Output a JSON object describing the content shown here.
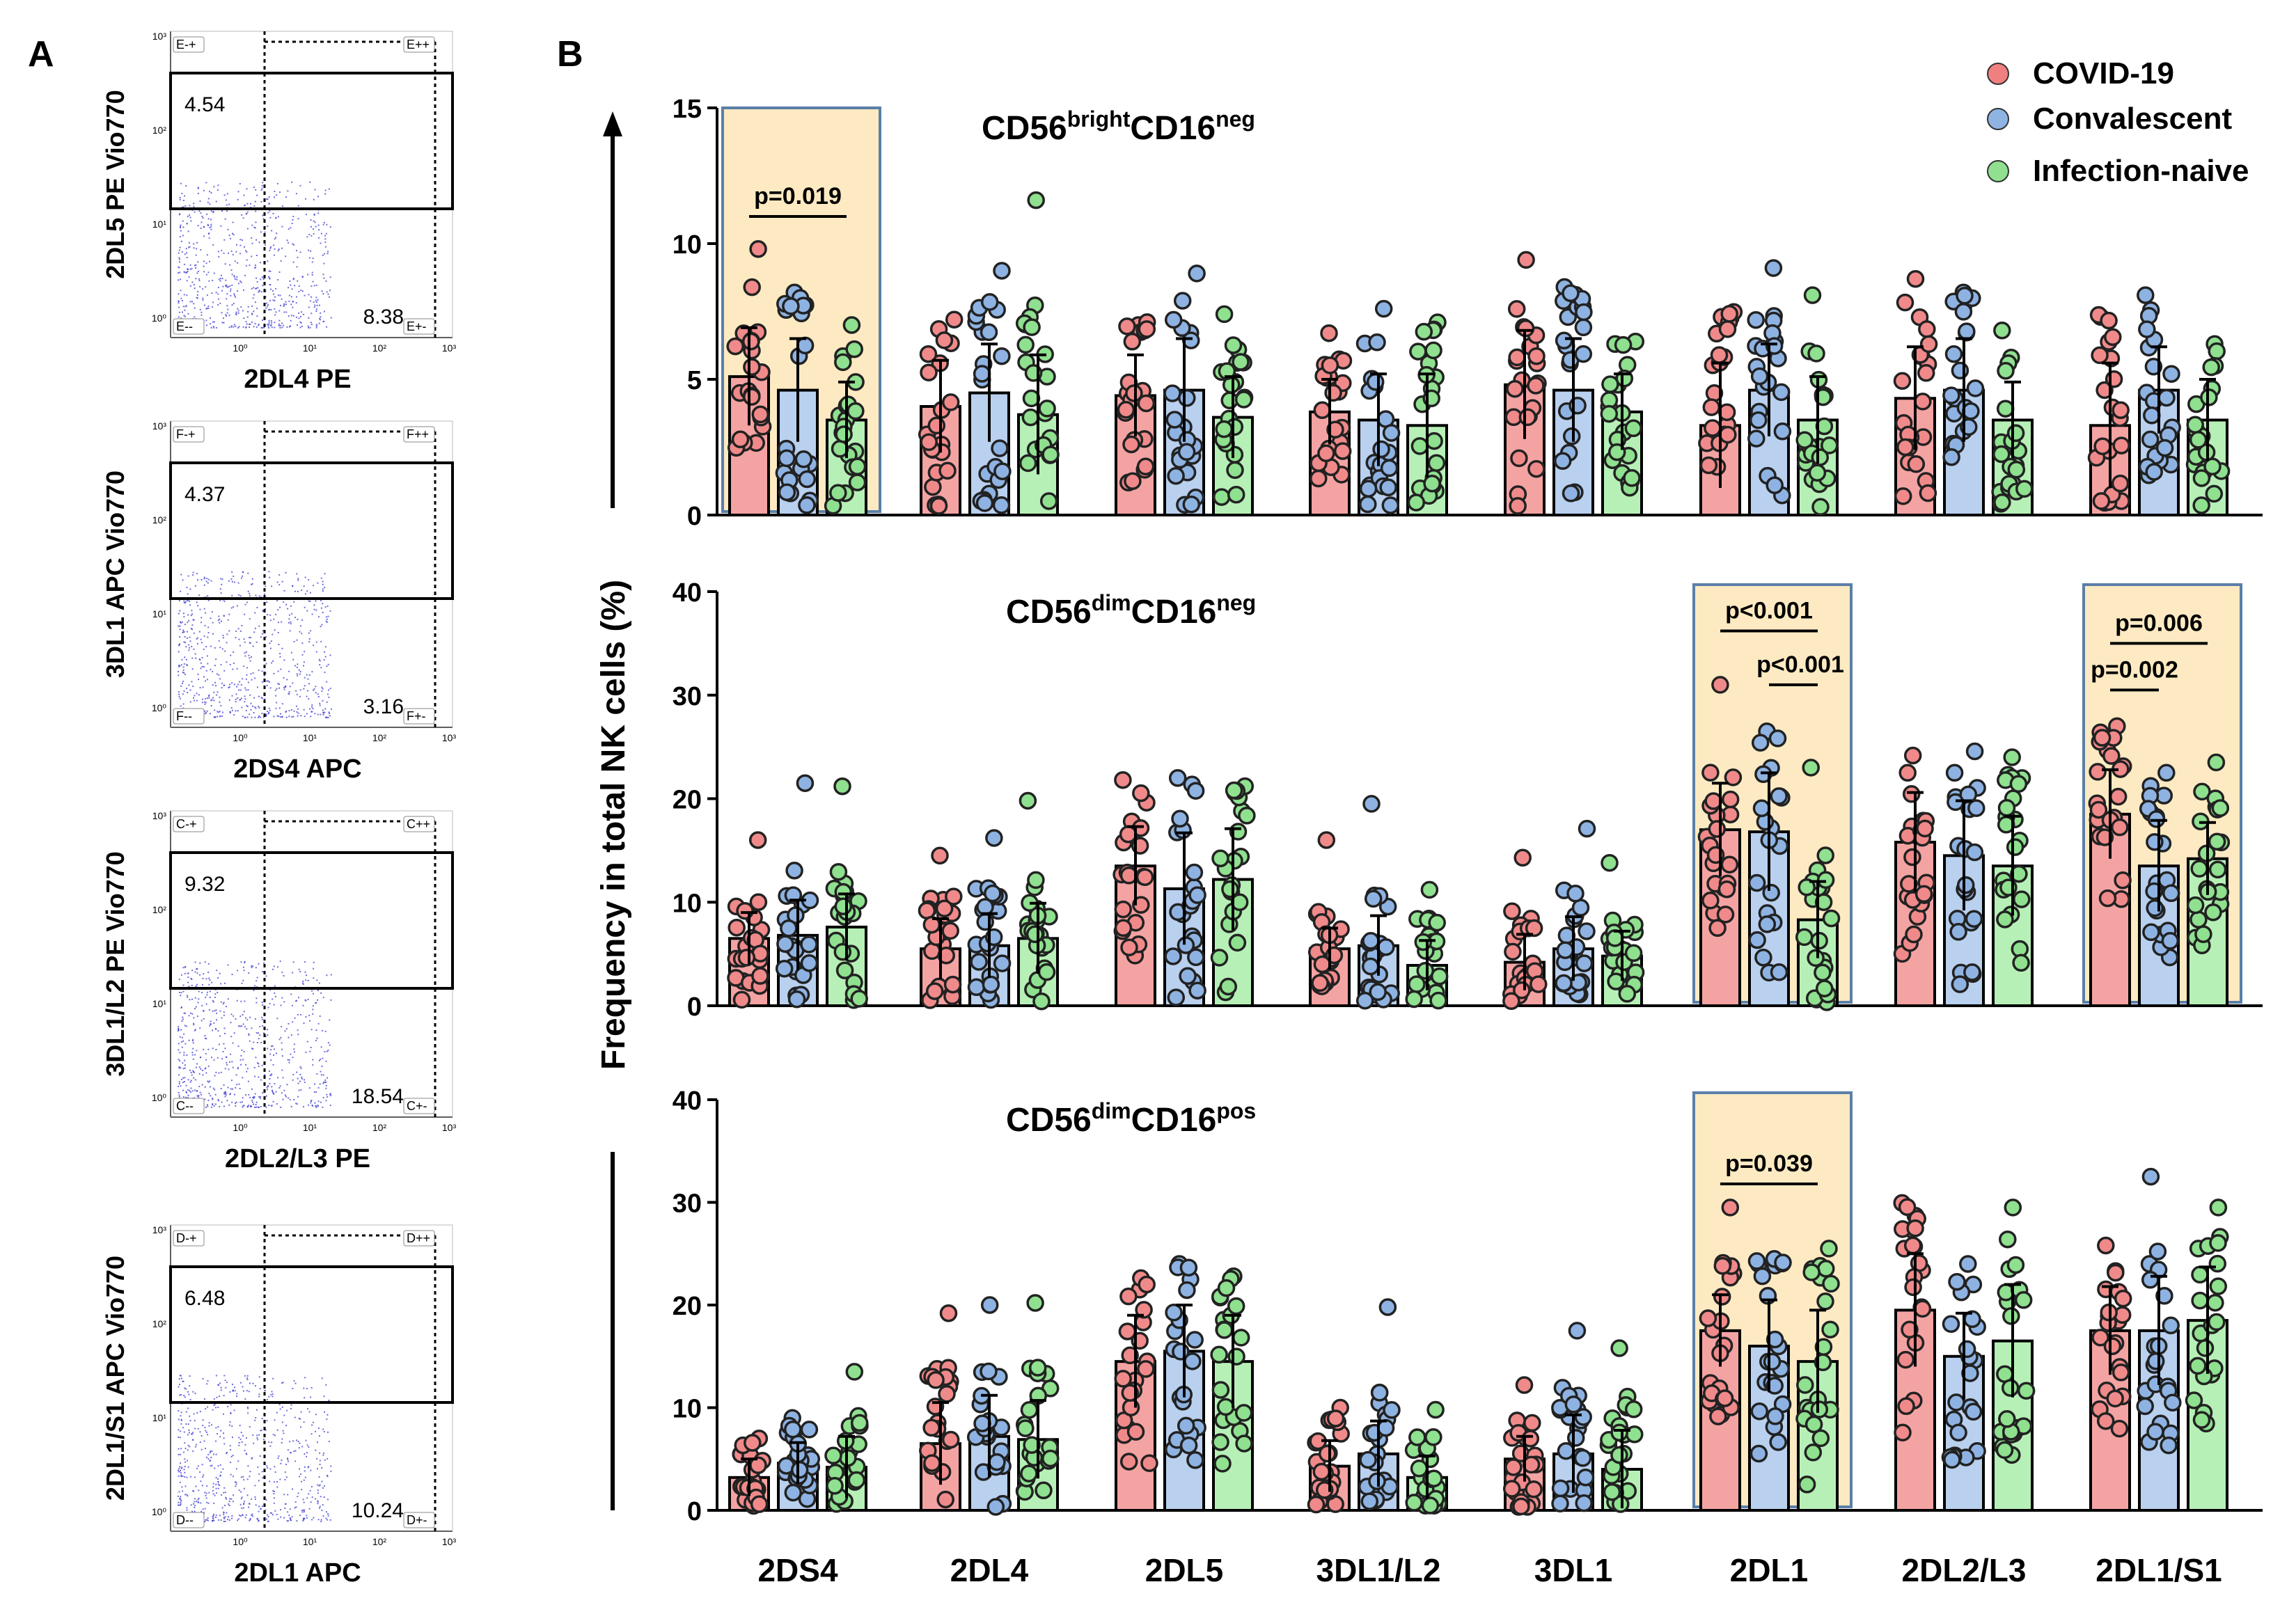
{
  "panel_labels": {
    "a": "A",
    "b": "B"
  },
  "legend": [
    {
      "name": "COVID-19",
      "color": "#f08080"
    },
    {
      "name": "Convalescent",
      "color": "#8fb4e3"
    },
    {
      "name": "Infection-naive",
      "color": "#90e090"
    }
  ],
  "colors": {
    "covid_bar": "#f4a3a3",
    "convalescent_bar": "#b9d0ee",
    "naive_bar": "#b7f0b7",
    "covid_dot": "#f08a8a",
    "convalescent_dot": "#8eb3e2",
    "naive_dot": "#8fe08f",
    "highlight_fill": "#fdeac2",
    "highlight_stroke": "#5a7fa8",
    "flow_dots": "#3c3cd0"
  },
  "flow_plots": [
    {
      "y_label": "2DL5 PE Vio770",
      "x_label": "2DL4 PE",
      "upper_pct": "4.54",
      "lower_pct": "8.38",
      "q_tl": "E-+",
      "q_tr": "E++",
      "q_bl": "E--",
      "q_br": "E+-",
      "y_ticks": [
        "10³",
        "10²",
        "10¹",
        "10⁰"
      ],
      "x_ticks": [
        "10⁰",
        "10¹",
        "10²",
        "10³"
      ]
    },
    {
      "y_label": "3DL1 APC Vio770",
      "x_label": "2DS4 APC",
      "upper_pct": "4.37",
      "lower_pct": "3.16",
      "q_tl": "F-+",
      "q_tr": "F++",
      "q_bl": "F--",
      "q_br": "F+-",
      "y_ticks": [
        "10³",
        "10²",
        "10¹",
        "10⁰"
      ],
      "x_ticks": [
        "10⁰",
        "10¹",
        "10²",
        "10³"
      ]
    },
    {
      "y_label": "3DL1/L2 PE Vio770",
      "x_label": "2DL2/L3 PE",
      "upper_pct": "9.32",
      "lower_pct": "18.54",
      "q_tl": "C-+",
      "q_tr": "C++",
      "q_bl": "C--",
      "q_br": "C+-",
      "y_ticks": [
        "10³",
        "10²",
        "10¹",
        "10⁰"
      ],
      "x_ticks": [
        "10⁰",
        "10¹",
        "10²",
        "10³"
      ]
    },
    {
      "y_label": "2DL1/S1 APC Vio770",
      "x_label": "2DL1 APC",
      "upper_pct": "6.48",
      "lower_pct": "10.24",
      "q_tl": "D-+",
      "q_tr": "D++",
      "q_bl": "D--",
      "q_br": "D+-",
      "y_ticks": [
        "10³",
        "10²",
        "10¹",
        "10⁰"
      ],
      "x_ticks": [
        "10⁰",
        "10¹",
        "10²",
        "10³"
      ]
    }
  ],
  "chart_data": {
    "type": "bar",
    "y_axis_label": "Frequency in total NK cells (%)",
    "categories": [
      "2DS4",
      "2DL4",
      "2DL5",
      "3DL1/L2",
      "3DL1",
      "2DL1",
      "2DL2/L3",
      "2DL1/S1"
    ],
    "series_names": [
      "COVID-19",
      "Convalescent",
      "Infection-naive"
    ],
    "panels": [
      {
        "title_main": "CD56",
        "title_sup1": "bright",
        "title_mid": "CD16",
        "title_sup2": "neg",
        "ylim": [
          0,
          15
        ],
        "yticks": [
          "0",
          "5",
          "10",
          "15"
        ],
        "ytick_values": [
          0,
          5,
          10,
          15
        ],
        "series": [
          {
            "name": "COVID-19",
            "values": [
              5.1,
              4.0,
              4.4,
              3.8,
              4.8,
              3.3,
              4.3,
              3.3
            ],
            "sd": [
              1.8,
              1.7,
              1.5,
              1.2,
              2.0,
              2.3,
              1.9,
              2.3
            ],
            "max": [
              9.8,
              7.2,
              7.0,
              6.7,
              9.4,
              7.3,
              8.7,
              7.3
            ]
          },
          {
            "name": "Convalescent",
            "values": [
              4.6,
              4.5,
              4.6,
              3.5,
              4.6,
              4.6,
              4.6,
              4.6
            ],
            "sd": [
              1.9,
              1.8,
              1.9,
              1.7,
              1.9,
              1.7,
              1.9,
              1.6
            ],
            "max": [
              8.2,
              9.0,
              8.9,
              7.6,
              8.4,
              9.1,
              8.2,
              8.1
            ]
          },
          {
            "name": "Infection-naive",
            "values": [
              3.5,
              3.7,
              3.6,
              3.3,
              3.8,
              3.5,
              3.5,
              3.5
            ],
            "sd": [
              1.4,
              2.2,
              1.5,
              1.9,
              1.4,
              1.6,
              1.4,
              1.5
            ],
            "max": [
              7.0,
              11.6,
              7.4,
              7.1,
              6.3,
              8.1,
              6.8,
              6.3
            ]
          }
        ],
        "highlights": [
          {
            "category": 0,
            "pvals": [
              {
                "label": "p=0.019",
                "from": 0,
                "to": 2,
                "y": 11.0
              }
            ]
          }
        ]
      },
      {
        "title_main": "CD56",
        "title_sup1": "dim",
        "title_mid": "CD16",
        "title_sup2": "neg",
        "ylim": [
          0,
          40
        ],
        "yticks": [
          "0",
          "10",
          "20",
          "30",
          "40"
        ],
        "ytick_values": [
          0,
          10,
          20,
          30,
          40
        ],
        "series": [
          {
            "name": "COVID-19",
            "values": [
              6.5,
              5.5,
              13.5,
              5.5,
              4.2,
              17.0,
              15.8,
              18.5
            ],
            "sd": [
              2.5,
              2.9,
              3.8,
              2.0,
              2.7,
              4.5,
              4.8,
              4.3
            ],
            "max": [
              16.0,
              14.5,
              21.8,
              16.0,
              14.3,
              31.0,
              22.5,
              27.0
            ]
          },
          {
            "name": "Convalescent",
            "values": [
              6.8,
              5.8,
              11.3,
              5.8,
              5.5,
              16.8,
              14.5,
              13.5
            ],
            "sd": [
              3.4,
              3.1,
              5.4,
              2.9,
              3.1,
              5.7,
              5.3,
              4.4
            ],
            "max": [
              21.5,
              16.2,
              22.0,
              19.5,
              17.1,
              26.5,
              22.5,
              22.5
            ]
          },
          {
            "name": "Infection-naive",
            "values": [
              7.6,
              6.5,
              12.2,
              3.9,
              4.8,
              8.3,
              13.5,
              14.2
            ],
            "sd": [
              3.2,
              3.4,
              4.9,
              2.4,
              2.4,
              3.7,
              4.8,
              3.5
            ],
            "max": [
              21.2,
              19.8,
              18.8,
              11.2,
              13.8,
              23.0,
              24.0,
              23.5
            ]
          }
        ],
        "highlights": [
          {
            "category": 5,
            "pvals": [
              {
                "label": "p<0.001",
                "from": 0,
                "to": 2,
                "y": 36.2
              },
              {
                "label": "p<0.001",
                "from": 1,
                "to": 2,
                "y": 31.0
              }
            ]
          },
          {
            "category": 7,
            "pvals": [
              {
                "label": "p=0.006",
                "from": 0,
                "to": 2,
                "y": 35.0
              },
              {
                "label": "p=0.002",
                "from": 0,
                "to": 1,
                "y": 30.5
              }
            ]
          }
        ]
      },
      {
        "title_main": "CD56",
        "title_sup1": "dim",
        "title_mid": "CD16",
        "title_sup2": "pos",
        "ylim": [
          0,
          40
        ],
        "yticks": [
          "0",
          "10",
          "20",
          "30",
          "40"
        ],
        "ytick_values": [
          0,
          10,
          20,
          30,
          40
        ],
        "series": [
          {
            "name": "COVID-19",
            "values": [
              3.2,
              6.5,
              14.5,
              4.3,
              5.0,
              17.5,
              19.5,
              17.5
            ],
            "sd": [
              1.8,
              4.0,
              4.5,
              2.5,
              2.2,
              3.5,
              5.5,
              4.3
            ],
            "max": [
              7.0,
              19.2,
              21.5,
              10.0,
              12.2,
              29.5,
              28.7,
              25.8
            ]
          },
          {
            "name": "Convalescent",
            "values": [
              4.6,
              7.2,
              15.5,
              5.5,
              5.5,
              16.0,
              15.0,
              17.5
            ],
            "sd": [
              2.0,
              4.0,
              4.5,
              3.2,
              3.8,
              4.5,
              4.2,
              5.3
            ],
            "max": [
              9.0,
              20.0,
              22.5,
              19.8,
              17.5,
              24.0,
              24.0,
              32.5
            ]
          },
          {
            "name": "Infection-naive",
            "values": [
              4.2,
              6.9,
              14.5,
              3.2,
              4.0,
              14.5,
              16.5,
              18.5
            ],
            "sd": [
              3.0,
              3.8,
              4.5,
              2.1,
              3.8,
              5.0,
              5.5,
              5.2
            ],
            "max": [
              13.5,
              20.2,
              22.8,
              9.8,
              15.8,
              25.5,
              29.5,
              29.5
            ]
          }
        ],
        "highlights": [
          {
            "category": 5,
            "pvals": [
              {
                "label": "p=0.039",
                "from": 0,
                "to": 2,
                "y": 31.8
              }
            ]
          }
        ]
      }
    ]
  }
}
